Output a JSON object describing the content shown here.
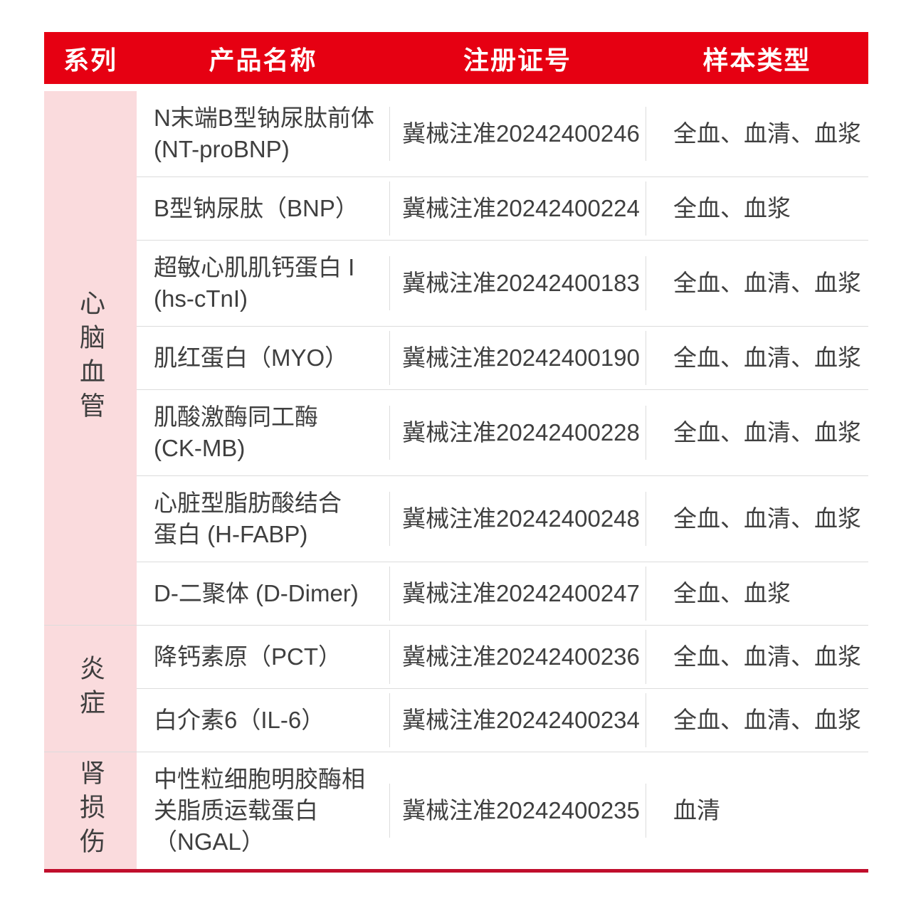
{
  "table": {
    "header": {
      "bg_color": "#e60012",
      "text_color": "#ffffff",
      "columns": {
        "series": "系列",
        "product": "产品名称",
        "reg_no": "注册证号",
        "sample": "样本类型"
      }
    },
    "colors": {
      "category_bg": "#fadbdd",
      "divider": "#dcdcdc",
      "body_text": "#3f3f3f",
      "bottom_line": "#c00e2c"
    },
    "groups": [
      {
        "category": "心脑血管",
        "rows": [
          {
            "product": "N末端B型钠尿肽前体\n(NT-proBNP)",
            "reg_no": "冀械注准20242400246",
            "sample": "全血、血清、血浆"
          },
          {
            "product": "B型钠尿肽（BNP）",
            "reg_no": "冀械注准20242400224",
            "sample": "全血、血浆"
          },
          {
            "product": "超敏心肌肌钙蛋白 I\n(hs-cTnI)",
            "reg_no": "冀械注准20242400183",
            "sample": "全血、血清、血浆"
          },
          {
            "product": "肌红蛋白（MYO）",
            "reg_no": "冀械注准20242400190",
            "sample": "全血、血清、血浆"
          },
          {
            "product": "肌酸激酶同工酶\n(CK-MB)",
            "reg_no": "冀械注准20242400228",
            "sample": "全血、血清、血浆"
          },
          {
            "product": "心脏型脂肪酸结合\n蛋白 (H-FABP)",
            "reg_no": "冀械注准20242400248",
            "sample": "全血、血清、血浆"
          },
          {
            "product": "D-二聚体 (D-Dimer)",
            "reg_no": "冀械注准20242400247",
            "sample": "全血、血浆"
          }
        ]
      },
      {
        "category": "炎症",
        "rows": [
          {
            "product": "降钙素原（PCT）",
            "reg_no": "冀械注准20242400236",
            "sample": "全血、血清、血浆"
          },
          {
            "product": "白介素6（IL-6）",
            "reg_no": "冀械注准20242400234",
            "sample": "全血、血清、血浆"
          }
        ]
      },
      {
        "category": "肾损伤",
        "rows": [
          {
            "product": "中性粒细胞明胶酶相\n关脂质运载蛋白\n（NGAL）",
            "reg_no": "冀械注准20242400235",
            "sample": "血清"
          }
        ]
      }
    ]
  }
}
